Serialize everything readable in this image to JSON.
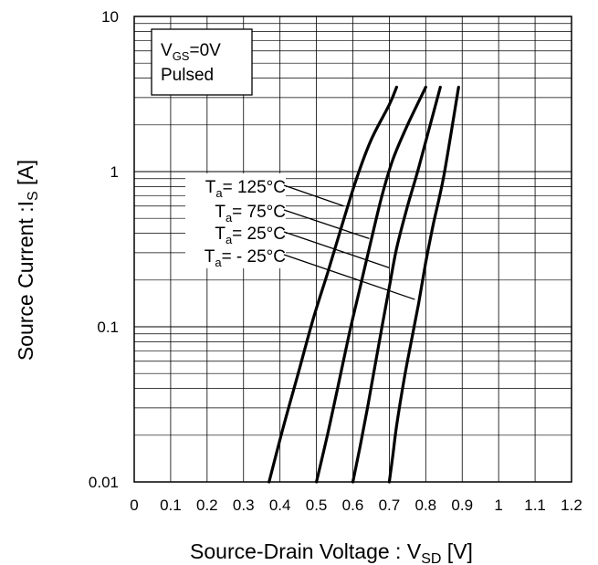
{
  "chart_data": {
    "type": "line",
    "title": "",
    "xlabel": {
      "main": "Source-Drain Voltage : V",
      "sub": "SD",
      "unit": " [V]"
    },
    "ylabel": {
      "main": "Source Current :I",
      "sub": "S",
      "unit": " [A]"
    },
    "x_scale": "linear",
    "y_scale": "log",
    "xlim": [
      0,
      1.2
    ],
    "ylim": [
      0.01,
      10
    ],
    "x_ticks": [
      "0",
      "0.1",
      "0.2",
      "0.3",
      "0.4",
      "0.5",
      "0.6",
      "0.7",
      "0.8",
      "0.9",
      "1",
      "1.1",
      "1.2"
    ],
    "y_ticks": [
      {
        "value": 0.01,
        "label": "0.01"
      },
      {
        "value": 0.1,
        "label": "0.1"
      },
      {
        "value": 1,
        "label": "1"
      },
      {
        "value": 10,
        "label": "10"
      }
    ],
    "grid": true,
    "condition_box": {
      "line1_main": "V",
      "line1_sub": "GS",
      "line1_rest": "=0V",
      "line2": "Pulsed"
    },
    "series": [
      {
        "name": "Ta= 125°C",
        "label": {
          "main": "T",
          "sub": "a",
          "rest": "= 125°C"
        },
        "x": [
          0.37,
          0.41,
          0.45,
          0.49,
          0.53,
          0.57,
          0.61,
          0.65,
          0.7,
          0.72
        ],
        "y": [
          0.01,
          0.023,
          0.05,
          0.11,
          0.22,
          0.45,
          0.9,
          1.6,
          2.7,
          3.5
        ]
      },
      {
        "name": "Ta= 75°C",
        "label": {
          "main": "T",
          "sub": "a",
          "rest": "= 75°C"
        },
        "x": [
          0.5,
          0.53,
          0.56,
          0.59,
          0.62,
          0.65,
          0.68,
          0.71,
          0.75,
          0.8
        ],
        "y": [
          0.01,
          0.02,
          0.042,
          0.09,
          0.18,
          0.36,
          0.7,
          1.2,
          2.0,
          3.5
        ]
      },
      {
        "name": "Ta= 25°C",
        "label": {
          "main": "T",
          "sub": "a",
          "rest": "= 25°C"
        },
        "x": [
          0.6,
          0.62,
          0.64,
          0.66,
          0.68,
          0.7,
          0.72,
          0.75,
          0.78,
          0.84
        ],
        "y": [
          0.01,
          0.017,
          0.03,
          0.055,
          0.1,
          0.18,
          0.32,
          0.6,
          1.05,
          3.5
        ]
      },
      {
        "name": "Ta= - 25°C",
        "label": {
          "main": "T",
          "sub": "a",
          "rest": "= - 25°C"
        },
        "x": [
          0.7,
          0.71,
          0.72,
          0.74,
          0.76,
          0.78,
          0.8,
          0.82,
          0.85,
          0.89
        ],
        "y": [
          0.01,
          0.015,
          0.023,
          0.045,
          0.08,
          0.14,
          0.26,
          0.45,
          0.95,
          3.5
        ]
      }
    ],
    "annotations": [
      {
        "series": "Ta= 125°C",
        "point": [
          0.575,
          0.6
        ]
      },
      {
        "series": "Ta= 75°C",
        "point": [
          0.645,
          0.37
        ]
      },
      {
        "series": "Ta= 25°C",
        "point": [
          0.7,
          0.24
        ]
      },
      {
        "series": "Ta= - 25°C",
        "point": [
          0.77,
          0.15
        ]
      }
    ]
  }
}
